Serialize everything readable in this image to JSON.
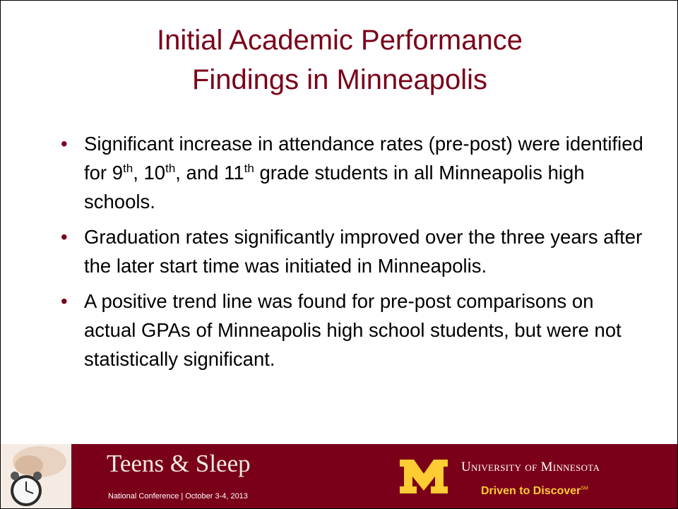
{
  "title": [
    "Initial Academic Performance",
    "Findings in Minneapolis"
  ],
  "bullets": [
    [
      {
        "text": "Significant increase in attendance rates (pre-post) were identified for 9"
      },
      {
        "sup": "th"
      },
      {
        "text": ", 10"
      },
      {
        "sup": "th"
      },
      {
        "text": ", and 11"
      },
      {
        "sup": "th"
      },
      {
        "text": " grade students in all Minneapolis high schools."
      }
    ],
    [
      {
        "text": "Graduation rates significantly improved over the three years after the later start time was initiated in Minneapolis."
      }
    ],
    [
      {
        "text": "A positive trend line was found for pre-post comparisons on actual GPAs of Minneapolis high school students, but were not statistically significant."
      }
    ]
  ],
  "footer": {
    "brand": "Teens & Sleep",
    "conference": "National Conference | October 3-4, 2013",
    "university": "University of Minnesota",
    "motto": "Driven to Discover",
    "motto_mark": "SM"
  }
}
